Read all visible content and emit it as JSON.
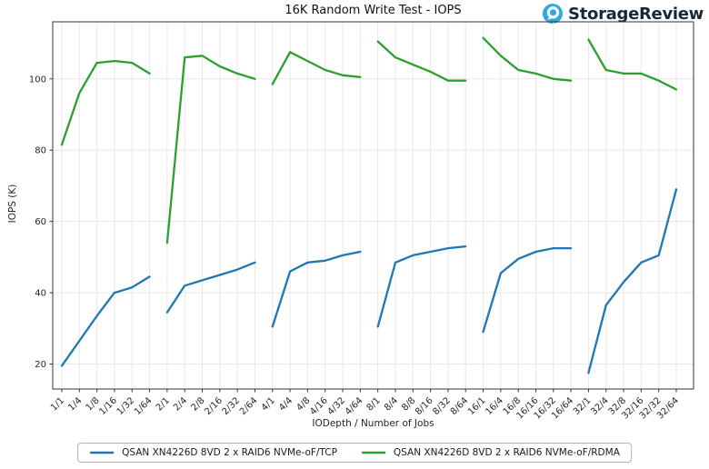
{
  "header": {
    "logo_text": "StorageReview"
  },
  "colors": {
    "tcp": "#1f77b4",
    "rdma": "#2ca02c",
    "grid": "#e8e8e8",
    "spine": "#333333",
    "tick_text": "#262626",
    "logo_blue": "#2fa9e1",
    "logo_text": "#15293b"
  },
  "chart_data": {
    "type": "line",
    "title": "16K Random Write Test - IOPS",
    "xlabel": "IODepth / Number of Jobs",
    "ylabel": "IOPS (K)",
    "ylim": [
      13,
      116
    ],
    "yticks": [
      20,
      40,
      60,
      80,
      100
    ],
    "grid": true,
    "legend_position": "bottom",
    "group_size": 6,
    "categories": [
      "1/1",
      "1/4",
      "1/8",
      "1/16",
      "1/32",
      "1/64",
      "2/1",
      "2/4",
      "2/8",
      "2/16",
      "2/32",
      "2/64",
      "4/1",
      "4/4",
      "4/8",
      "4/16",
      "4/32",
      "4/64",
      "8/1",
      "8/4",
      "8/8",
      "8/16",
      "8/32",
      "8/64",
      "16/1",
      "16/4",
      "16/8",
      "16/16",
      "16/32",
      "16/64",
      "32/1",
      "32/4",
      "32/8",
      "32/16",
      "32/32",
      "32/64"
    ],
    "series": [
      {
        "name": "QSAN XN4226D 8VD 2 x RAID6 NVMe-oF/TCP",
        "color_key": "tcp",
        "values": [
          19.5,
          26.5,
          33.5,
          40,
          41.5,
          44.5,
          34.5,
          42,
          43.5,
          45,
          46.5,
          48.5,
          30.5,
          46,
          48.5,
          49,
          50.5,
          51.5,
          30.5,
          48.5,
          50.5,
          51.5,
          52.5,
          53,
          29,
          45.5,
          49.5,
          51.5,
          52.5,
          52.5,
          17.5,
          36.5,
          43,
          48.5,
          50.5,
          69
        ]
      },
      {
        "name": "QSAN XN4226D 8VD 2 x RAID6 NVMe-oF/RDMA",
        "color_key": "rdma",
        "values": [
          81.5,
          96,
          104.5,
          105,
          104.5,
          101.5,
          54,
          106,
          106.5,
          103.5,
          101.5,
          100,
          98.5,
          107.5,
          105,
          102.5,
          101,
          100.5,
          110.5,
          106,
          104,
          102,
          99.5,
          99.5,
          111.5,
          106.5,
          102.5,
          101.5,
          100,
          99.5,
          111,
          102.5,
          101.5,
          101.5,
          99.5,
          97
        ]
      }
    ]
  }
}
